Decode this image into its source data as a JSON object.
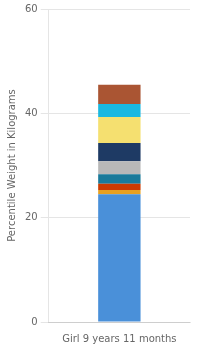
{
  "chart_data": {
    "type": "bar",
    "stacked": true,
    "categories": [
      "Girl 9 years 11 months"
    ],
    "series": [
      {
        "color": "#4a90d9",
        "values": [
          24.5
        ]
      },
      {
        "color": "#e8a020",
        "values": [
          0.8
        ]
      },
      {
        "color": "#cc3a00",
        "values": [
          1.2
        ]
      },
      {
        "color": "#1a7a9a",
        "values": [
          1.8
        ]
      },
      {
        "color": "#b8b8b8",
        "values": [
          2.5
        ]
      },
      {
        "color": "#1e3a64",
        "values": [
          3.5
        ]
      },
      {
        "color": "#f5e070",
        "values": [
          5.0
        ]
      },
      {
        "color": "#1ab8e0",
        "values": [
          2.5
        ]
      },
      {
        "color": "#aa5533",
        "values": [
          3.7
        ]
      }
    ],
    "ylabel": "Percentile Weight in Kilograms",
    "ylim": [
      0,
      60
    ],
    "yticks": [
      0,
      20,
      40,
      60
    ],
    "grid": true
  }
}
